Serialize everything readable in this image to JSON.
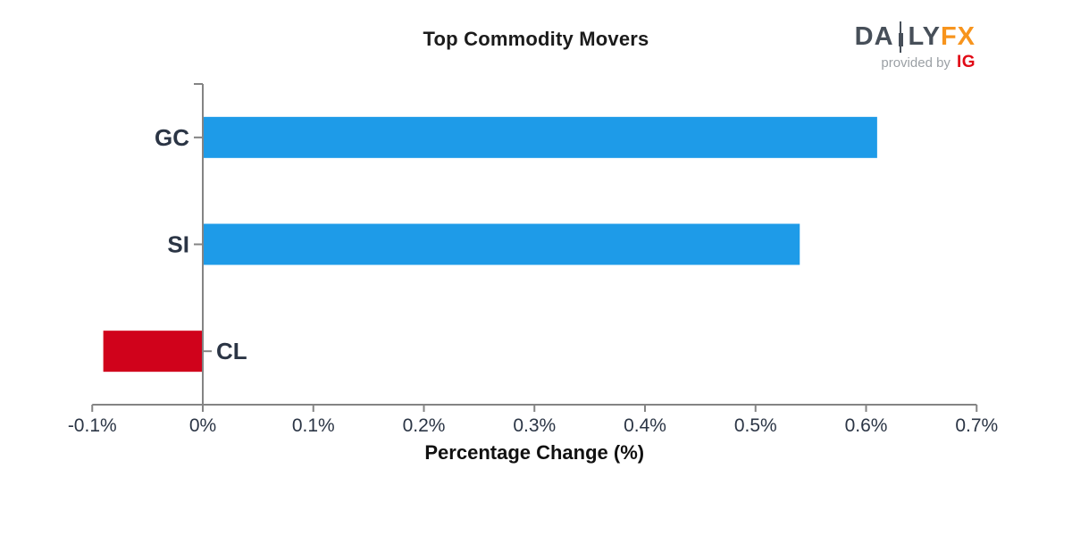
{
  "header": {
    "logo": {
      "part1": "DA",
      "part2": "LY",
      "part3": "FX",
      "tagline": "provided by",
      "ig": "IG",
      "slate": "#474F59",
      "orange": "#F7941D",
      "ig_red": "#E10A17",
      "tagline_gray": "#9BA0A5"
    }
  },
  "chart_data": {
    "type": "bar",
    "orientation": "horizontal",
    "title": "Top Commodity Movers",
    "xlabel": "Percentage Change (%)",
    "categories": [
      "GC",
      "SI",
      "CL"
    ],
    "values": [
      0.61,
      0.54,
      -0.09
    ],
    "xlim": [
      -0.1,
      0.7
    ],
    "x_ticks": [
      -0.1,
      0,
      0.1,
      0.2,
      0.3,
      0.4,
      0.5,
      0.6,
      0.7
    ],
    "x_tick_labels": [
      "-0.1%",
      "0%",
      "0.1%",
      "0.2%",
      "0.3%",
      "0.4%",
      "0.5%",
      "0.6%",
      "0.7%"
    ],
    "positive_color": "#1E9BE8",
    "negative_color": "#D0021B",
    "axis_color": "#848484",
    "label_color": "#2B3545",
    "xlabel_color": "#111111",
    "grid": false,
    "legend": null
  }
}
